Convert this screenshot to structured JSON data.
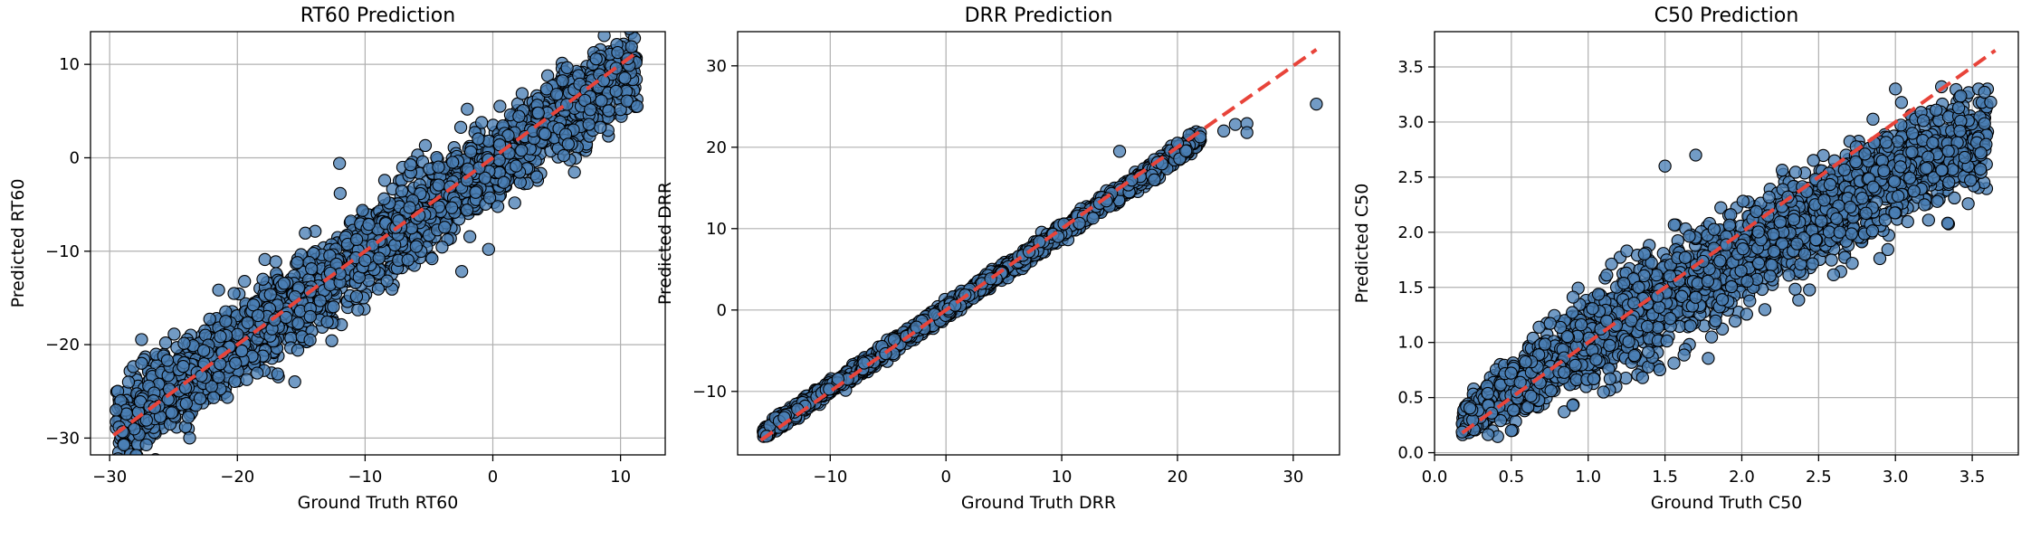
{
  "colors": {
    "point_fill": "#4a7fb5",
    "point_edge": "#000000",
    "reference_line": "#e8443a",
    "grid": "#b0b0b0"
  },
  "chart_data": [
    {
      "type": "scatter",
      "title": "RT60 Prediction",
      "xlabel": "Ground Truth RT60",
      "ylabel": "Predicted RT60",
      "xlim": [
        -31.5,
        13.5
      ],
      "ylim": [
        -31.8,
        13.5
      ],
      "xticks": [
        -30,
        -20,
        -10,
        0,
        10
      ],
      "yticks": [
        -30,
        -20,
        -10,
        0,
        10
      ],
      "xtick_labels": [
        "−30",
        "−20",
        "−10",
        "0",
        "10"
      ],
      "ytick_labels": [
        "−30",
        "−20",
        "−10",
        "0",
        "10"
      ],
      "grid": true,
      "reference_line": {
        "style": "dashed",
        "from": [
          -29.7,
          -29.7
        ],
        "to": [
          11.3,
          11.3
        ]
      },
      "cloud": {
        "x_range": [
          -29.5,
          11.3
        ],
        "slope": 0.96,
        "intercept": -0.6,
        "spread": 2.2,
        "n": 2600
      },
      "points": [
        [
          -29.5,
          -27.0
        ],
        [
          11.3,
          5.5
        ],
        [
          -27.5,
          -22.0
        ],
        [
          -12.0,
          -0.6
        ],
        [
          -2.0,
          5.2
        ],
        [
          5.0,
          6.8
        ],
        [
          8.5,
          6.1
        ],
        [
          -24.0,
          -26.3
        ],
        [
          -18.0,
          -13.0
        ],
        [
          -6.0,
          -9.5
        ]
      ]
    },
    {
      "type": "scatter",
      "title": "DRR Prediction",
      "xlabel": "Ground Truth DRR",
      "ylabel": "Predicted DRR",
      "xlim": [
        -18.0,
        34.0
      ],
      "ylim": [
        -17.8,
        34.2
      ],
      "xticks": [
        -10,
        0,
        10,
        20,
        30
      ],
      "yticks": [
        -10,
        0,
        10,
        20,
        30
      ],
      "xtick_labels": [
        "−10",
        "0",
        "10",
        "20",
        "30"
      ],
      "ytick_labels": [
        "−10",
        "0",
        "10",
        "20",
        "30"
      ],
      "grid": true,
      "reference_line": {
        "style": "dashed",
        "from": [
          -16.0,
          -16.0
        ],
        "to": [
          32.0,
          32.0
        ]
      },
      "cloud": {
        "x_range": [
          -15.8,
          22.0
        ],
        "slope": 0.96,
        "intercept": 0.0,
        "spread": 0.45,
        "n": 2200
      },
      "points": [
        [
          32.0,
          25.3
        ],
        [
          25.0,
          22.8
        ],
        [
          26.0,
          22.9
        ],
        [
          26.0,
          21.8
        ],
        [
          24.0,
          22.0
        ],
        [
          21.0,
          21.5
        ],
        [
          20.0,
          20.5
        ],
        [
          15.0,
          19.5
        ],
        [
          18.0,
          16.0
        ],
        [
          -15.5,
          -15.5
        ]
      ]
    },
    {
      "type": "scatter",
      "title": "C50 Prediction",
      "xlabel": "Ground Truth C50",
      "ylabel": "Predicted C50",
      "xlim": [
        0.0,
        3.8
      ],
      "ylim": [
        -0.02,
        3.82
      ],
      "xticks": [
        0.0,
        0.5,
        1.0,
        1.5,
        2.0,
        2.5,
        3.0,
        3.5
      ],
      "yticks": [
        0.0,
        0.5,
        1.0,
        1.5,
        2.0,
        2.5,
        3.0,
        3.5
      ],
      "xtick_labels": [
        "0.0",
        "0.5",
        "1.0",
        "1.5",
        "2.0",
        "2.5",
        "3.0",
        "3.5"
      ],
      "ytick_labels": [
        "0.0",
        "0.5",
        "1.0",
        "1.5",
        "2.0",
        "2.5",
        "3.0",
        "3.5"
      ],
      "grid": true,
      "reference_line": {
        "style": "dashed",
        "from": [
          0.18,
          0.18
        ],
        "to": [
          3.65,
          3.65
        ]
      },
      "cloud": {
        "x_range": [
          0.18,
          3.6
        ],
        "curve": "saturating",
        "spread": 0.22,
        "n": 2600
      },
      "points": [
        [
          0.5,
          0.2
        ],
        [
          0.9,
          0.43
        ],
        [
          1.1,
          0.55
        ],
        [
          1.5,
          2.6
        ],
        [
          1.7,
          2.7
        ],
        [
          3.3,
          3.32
        ],
        [
          3.58,
          3.27
        ],
        [
          3.62,
          3.18
        ],
        [
          3.2,
          2.58
        ],
        [
          3.0,
          3.3
        ]
      ]
    }
  ]
}
